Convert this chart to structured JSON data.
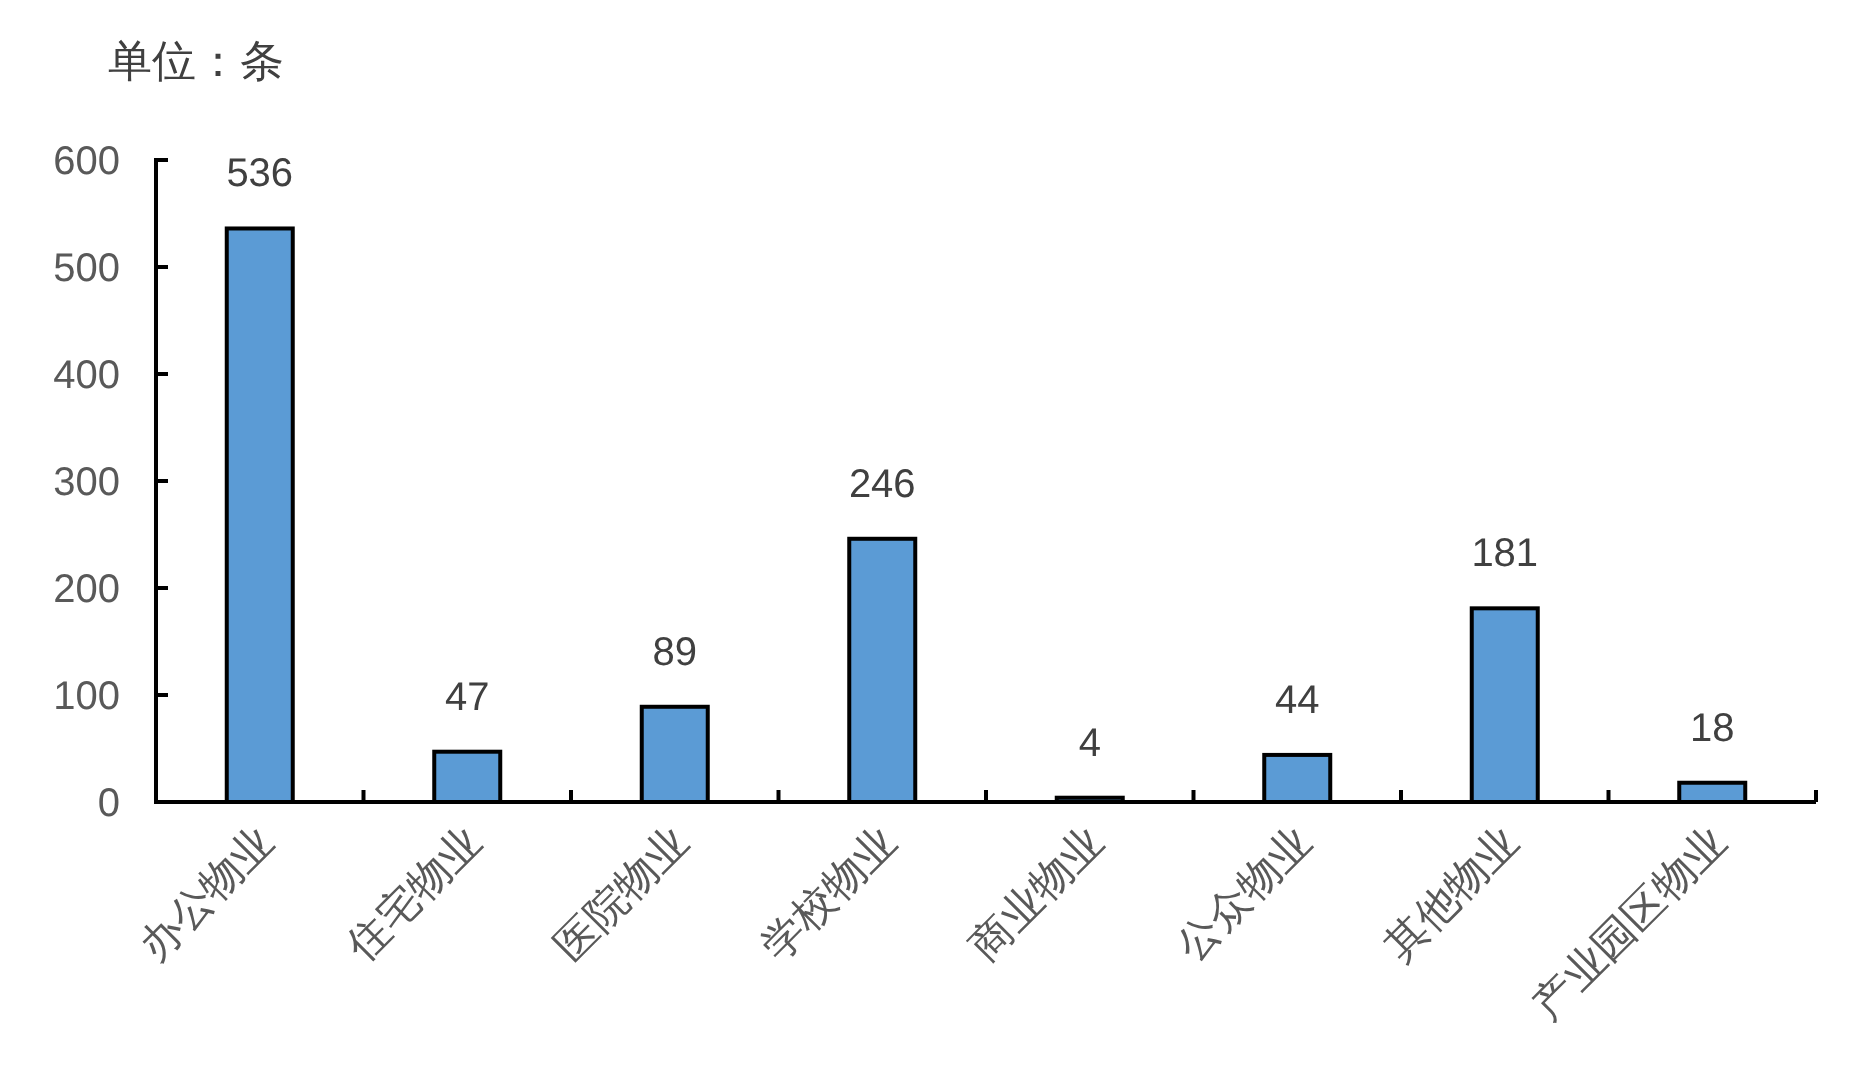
{
  "chart_data": {
    "type": "bar",
    "ylabel": "单位：条",
    "categories": [
      "办公物业",
      "住宅物业",
      "医院物业",
      "学校物业",
      "商业物业",
      "公众物业",
      "其他物业",
      "产业园区物业"
    ],
    "values": [
      536,
      47,
      89,
      246,
      4,
      44,
      181,
      18
    ],
    "color": "#5b9bd5",
    "ylim": [
      0,
      600
    ],
    "yticks": [
      0,
      100,
      200,
      300,
      400,
      500,
      600
    ],
    "data_labels": true
  }
}
